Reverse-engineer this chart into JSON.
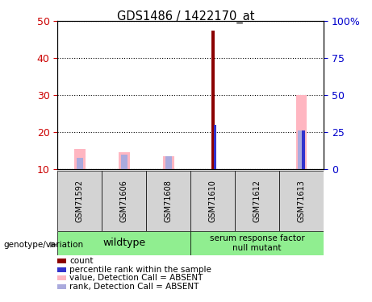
{
  "title": "GDS1486 / 1422170_at",
  "samples": [
    "GSM71592",
    "GSM71606",
    "GSM71608",
    "GSM71610",
    "GSM71612",
    "GSM71613"
  ],
  "wt_count": 3,
  "mut_count": 3,
  "ylim_left": [
    10,
    50
  ],
  "ylim_right": [
    0,
    100
  ],
  "yticks_left": [
    10,
    20,
    30,
    40,
    50
  ],
  "yticks_right": [
    0,
    25,
    50,
    75,
    100
  ],
  "ytick_labels_right": [
    "0",
    "25",
    "50",
    "75",
    "100%"
  ],
  "bar_bottom": 10,
  "count_color": "#8B0000",
  "rank_color": "#3333CC",
  "value_absent_color": "#FFB6C1",
  "rank_absent_color": "#AAAADD",
  "count_values": [
    0,
    0,
    0,
    47.5,
    0,
    0
  ],
  "rank_values": [
    0,
    0,
    0,
    22.0,
    0,
    20.5
  ],
  "value_absent": [
    15.5,
    14.5,
    13.5,
    0,
    10.0,
    30.0
  ],
  "rank_absent": [
    13.0,
    14.0,
    13.5,
    0,
    10.0,
    20.5
  ],
  "genotype_label": "genotype/variation",
  "wildtype_label": "wildtype",
  "mutant_label": "serum response factor\nnull mutant",
  "legend_items": [
    {
      "color": "#8B0000",
      "label": "count"
    },
    {
      "color": "#3333CC",
      "label": "percentile rank within the sample"
    },
    {
      "color": "#FFB6C1",
      "label": "value, Detection Call = ABSENT"
    },
    {
      "color": "#AAAADD",
      "label": "rank, Detection Call = ABSENT"
    }
  ],
  "left_axis_color": "#CC0000",
  "right_axis_color": "#0000CC",
  "sample_bg_color": "#D3D3D3",
  "genotype_bg_color": "#90EE90"
}
